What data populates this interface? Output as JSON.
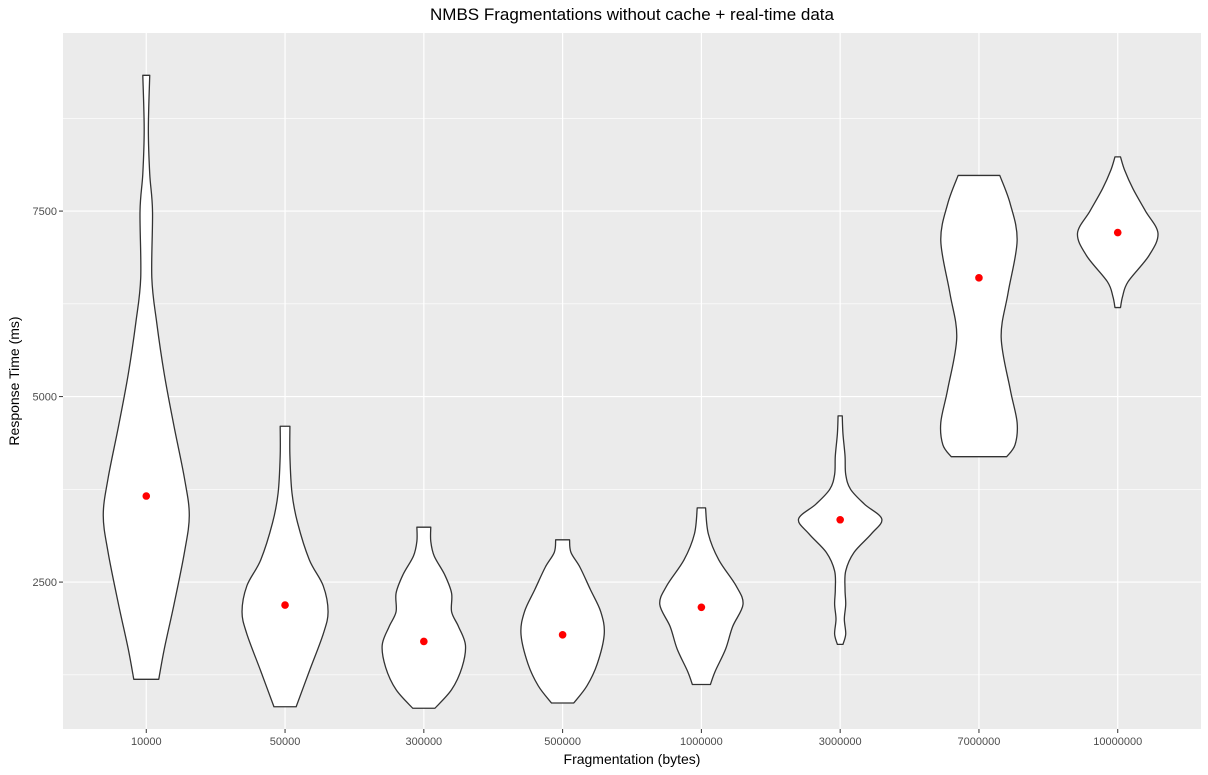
{
  "chart_data": {
    "type": "violin",
    "title": "NMBS Fragmentations without cache + real-time data",
    "xlabel": "Fragmentation (bytes)",
    "ylabel": "Response Time (ms)",
    "categories": [
      "10000",
      "50000",
      "300000",
      "500000",
      "1000000",
      "3000000",
      "7000000",
      "10000000"
    ],
    "ylim": [
      520,
      9900
    ],
    "yticks": [
      2500,
      5000,
      7500
    ],
    "grid": true,
    "series": [
      {
        "category": "10000",
        "min": 1190,
        "max": 9330,
        "mean": 3660,
        "profile": [
          [
            1190,
            0.18
          ],
          [
            1600,
            0.26
          ],
          [
            2200,
            0.4
          ],
          [
            2900,
            0.55
          ],
          [
            3400,
            0.62
          ],
          [
            3900,
            0.55
          ],
          [
            4600,
            0.4
          ],
          [
            5300,
            0.26
          ],
          [
            6000,
            0.15
          ],
          [
            6600,
            0.08
          ],
          [
            7500,
            0.09
          ],
          [
            8000,
            0.05
          ],
          [
            8600,
            0.03
          ],
          [
            9330,
            0.05
          ]
        ]
      },
      {
        "category": "50000",
        "min": 820,
        "max": 4600,
        "mean": 2190,
        "profile": [
          [
            820,
            0.16
          ],
          [
            1300,
            0.35
          ],
          [
            1800,
            0.55
          ],
          [
            2100,
            0.62
          ],
          [
            2450,
            0.55
          ],
          [
            2800,
            0.35
          ],
          [
            3300,
            0.18
          ],
          [
            3700,
            0.1
          ],
          [
            4200,
            0.07
          ],
          [
            4600,
            0.07
          ]
        ]
      },
      {
        "category": "300000",
        "min": 800,
        "max": 3240,
        "mean": 1700,
        "profile": [
          [
            800,
            0.16
          ],
          [
            1050,
            0.4
          ],
          [
            1350,
            0.55
          ],
          [
            1650,
            0.6
          ],
          [
            1900,
            0.5
          ],
          [
            2100,
            0.4
          ],
          [
            2350,
            0.4
          ],
          [
            2600,
            0.3
          ],
          [
            2850,
            0.15
          ],
          [
            3050,
            0.1
          ],
          [
            3240,
            0.1
          ]
        ]
      },
      {
        "category": "500000",
        "min": 870,
        "max": 3070,
        "mean": 1790,
        "profile": [
          [
            870,
            0.16
          ],
          [
            1100,
            0.35
          ],
          [
            1400,
            0.5
          ],
          [
            1800,
            0.6
          ],
          [
            2100,
            0.55
          ],
          [
            2400,
            0.4
          ],
          [
            2700,
            0.25
          ],
          [
            2900,
            0.12
          ],
          [
            3070,
            0.1
          ]
        ]
      },
      {
        "category": "1000000",
        "min": 1120,
        "max": 3500,
        "mean": 2160,
        "profile": [
          [
            1120,
            0.13
          ],
          [
            1300,
            0.2
          ],
          [
            1600,
            0.35
          ],
          [
            1900,
            0.45
          ],
          [
            2200,
            0.6
          ],
          [
            2450,
            0.5
          ],
          [
            2800,
            0.25
          ],
          [
            3150,
            0.1
          ],
          [
            3500,
            0.06
          ]
        ]
      },
      {
        "category": "3000000",
        "min": 1660,
        "max": 4740,
        "mean": 3340,
        "profile": [
          [
            1660,
            0.04
          ],
          [
            1800,
            0.08
          ],
          [
            2000,
            0.06
          ],
          [
            2200,
            0.08
          ],
          [
            2400,
            0.07
          ],
          [
            2650,
            0.08
          ],
          [
            2900,
            0.2
          ],
          [
            3150,
            0.45
          ],
          [
            3350,
            0.6
          ],
          [
            3550,
            0.35
          ],
          [
            3750,
            0.15
          ],
          [
            3950,
            0.08
          ],
          [
            4200,
            0.07
          ],
          [
            4500,
            0.04
          ],
          [
            4740,
            0.03
          ]
        ]
      },
      {
        "category": "7000000",
        "min": 4190,
        "max": 7980,
        "mean": 6600,
        "profile": [
          [
            4190,
            0.4
          ],
          [
            4350,
            0.52
          ],
          [
            4650,
            0.55
          ],
          [
            5100,
            0.45
          ],
          [
            5800,
            0.32
          ],
          [
            6400,
            0.42
          ],
          [
            7100,
            0.55
          ],
          [
            7600,
            0.45
          ],
          [
            7980,
            0.3
          ]
        ]
      },
      {
        "category": "10000000",
        "min": 6200,
        "max": 8230,
        "mean": 7210,
        "profile": [
          [
            6200,
            0.04
          ],
          [
            6350,
            0.07
          ],
          [
            6550,
            0.15
          ],
          [
            6900,
            0.45
          ],
          [
            7200,
            0.58
          ],
          [
            7500,
            0.4
          ],
          [
            7800,
            0.22
          ],
          [
            8050,
            0.1
          ],
          [
            8230,
            0.04
          ]
        ]
      }
    ]
  }
}
